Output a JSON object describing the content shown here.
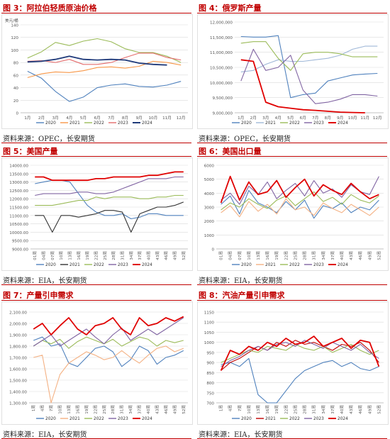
{
  "panels": [
    {
      "title": "图 3：阿拉伯轻质原油价格",
      "source": "资料来源：OPEC，长安期货",
      "chart_data": {
        "type": "line",
        "ylabel": "美元/桶",
        "ylim": [
          0,
          140
        ],
        "yticks": [
          0,
          20,
          40,
          60,
          80,
          100,
          120,
          140
        ],
        "categories": [
          "1月",
          "2月",
          "3月",
          "4月",
          "5月",
          "6月",
          "7月",
          "8月",
          "9月",
          "10月",
          "11月",
          "12月"
        ],
        "legend": "bottom",
        "series": [
          {
            "name": "2020",
            "color": "#4f81bd",
            "values": [
              66,
              55,
              34,
              18,
              25,
              40,
              44,
              46,
              42,
              41,
              44,
              50
            ]
          },
          {
            "name": "2021",
            "color": "#f79646",
            "values": [
              56,
              62,
              65,
              64,
              67,
              72,
              73,
              71,
              74,
              82,
              80,
              76
            ]
          },
          {
            "name": "2022",
            "color": "#9bbb59",
            "values": [
              87,
              97,
              112,
              107,
              114,
              118,
              113,
              102,
              96,
              96,
              90,
              80
            ]
          },
          {
            "name": "2023",
            "color": "#e46c6c",
            "values": [
              82,
              83,
              80,
              85,
              77,
              77,
              80,
              88,
              95,
              95,
              88,
              84
            ]
          },
          {
            "name": "2024",
            "color": "#1f3a7a",
            "values": [
              81,
              82,
              85,
              90,
              85,
              84,
              85,
              84,
              79,
              77,
              76,
              null
            ]
          }
        ]
      }
    },
    {
      "title": "图 4：俄罗斯产量",
      "source": "资料来源：OPEC，长安期货",
      "chart_data": {
        "type": "line",
        "ylim": [
          9000000,
          12000000
        ],
        "yticks": [
          9000000,
          9500000,
          10000000,
          10500000,
          11000000,
          11500000,
          12000000
        ],
        "ytick_labels": [
          "9,000,000",
          "9,500,000",
          "10,000,000",
          "10,500,000",
          "11,000,000",
          "11,500,000",
          "12,000,000"
        ],
        "categories": [
          "1月",
          "2月",
          "3月",
          "4月",
          "5月",
          "6月",
          "7月",
          "8月",
          "9月",
          "10月",
          "11月",
          "12月"
        ],
        "legend": "bottom",
        "series": [
          {
            "name": "2020",
            "color": "#4f81bd",
            "values": [
              11520000,
              11500000,
              11500000,
              11550000,
              9500000,
              9600000,
              9650000,
              10050000,
              10150000,
              10250000,
              10280000,
              10300000
            ]
          },
          {
            "name": "2021",
            "color": "#a0b8d8",
            "values": [
              10350000,
              10400000,
              10600000,
              10750000,
              10700000,
              10700000,
              10750000,
              10800000,
              10900000,
              11100000,
              11200000,
              11200000
            ]
          },
          {
            "name": "2022",
            "color": "#9bbb59",
            "values": [
              11300000,
              11350000,
              11350000,
              10800000,
              10400000,
              10950000,
              11000000,
              11000000,
              10950000,
              10850000,
              10850000,
              10850000
            ]
          },
          {
            "name": "2023",
            "color": "#8064a2",
            "values": [
              10050000,
              11100000,
              10400000,
              10500000,
              10900000,
              9750000,
              9300000,
              9350000,
              9450000,
              9600000,
              9600000,
              9550000
            ]
          },
          {
            "name": "2024",
            "color": "#e00000",
            "values": [
              10750000,
              10700000,
              9350000,
              9200000,
              9150000,
              9100000,
              9080000,
              9050000,
              9020000,
              9010000,
              9000000,
              null
            ]
          }
        ]
      }
    },
    {
      "title": "图 5：美国产量",
      "source": "资料来源：EIA，长安期货",
      "chart_data": {
        "type": "line",
        "ylim": [
          9000,
          14000
        ],
        "yticks": [
          9000,
          9500,
          10000,
          10500,
          11000,
          11500,
          12000,
          12500,
          13000,
          13500,
          14000
        ],
        "ytick_labels": [
          "9000.00",
          "9500.00",
          "10000.00",
          "10500.00",
          "11000.00",
          "11500.00",
          "12000.00",
          "12500.00",
          "13000.00",
          "13500.00",
          "14000.00"
        ],
        "categories": [
          "01周",
          "04周",
          "07周",
          "10周",
          "13周",
          "16周",
          "19周",
          "22周",
          "25周",
          "28周",
          "31周",
          "34周",
          "37周",
          "40周",
          "43周",
          "46周",
          "49周",
          "52周"
        ],
        "legend": "bottom",
        "series": [
          {
            "name": "2020",
            "color": "#4f81bd",
            "values": [
              12900,
              13000,
              13100,
              13100,
              13000,
              12300,
              11600,
              11200,
              11000,
              11000,
              11100,
              10800,
              10900,
              11100,
              11100,
              11000,
              11000,
              11000
            ]
          },
          {
            "name": "2021",
            "color": "#333333",
            "values": [
              11000,
              11000,
              10000,
              11000,
              11000,
              10900,
              11000,
              11100,
              11300,
              11300,
              11200,
              10000,
              11100,
              11300,
              11500,
              11500,
              11600,
              11800
            ]
          },
          {
            "name": "2022",
            "color": "#9bbb59",
            "values": [
              11600,
              11600,
              11600,
              11700,
              11800,
              11900,
              11900,
              12100,
              12000,
              12100,
              12100,
              12100,
              12000,
              12000,
              12100,
              12100,
              12200,
              12200
            ]
          },
          {
            "name": "2023",
            "color": "#8064a2",
            "values": [
              12200,
              12300,
              12300,
              12300,
              12300,
              12400,
              12400,
              12300,
              12300,
              12400,
              12600,
              12800,
              13000,
              13200,
              13200,
              13200,
              13300,
              13300
            ]
          },
          {
            "name": "2024",
            "color": "#e00000",
            "values": [
              13300,
              13300,
              13100,
              13100,
              13100,
              13100,
              13100,
              13200,
              13200,
              13300,
              13300,
              13300,
              13300,
              13400,
              13400,
              13500,
              13600,
              13600
            ]
          }
        ]
      }
    },
    {
      "title": "图 6：美国出口量",
      "source": "资料来源：EIA，长安期货",
      "chart_data": {
        "type": "line",
        "ylim": [
          0,
          6000
        ],
        "yticks": [
          0,
          1000,
          2000,
          3000,
          4000,
          5000,
          6000
        ],
        "ytick_labels": [
          "0",
          "1000",
          "2000",
          "3000",
          "4000",
          "5000",
          "6000"
        ],
        "categories": [
          "01周",
          "04周",
          "07周",
          "10周",
          "13周",
          "16周",
          "19周",
          "22周",
          "25周",
          "28周",
          "31周",
          "34周",
          "37周",
          "40周",
          "43周",
          "46周",
          "49周",
          "52周"
        ],
        "legend": "bottom",
        "series": [
          {
            "name": "2020",
            "color": "#4f81bd",
            "values": [
              3200,
              3800,
              2500,
              4200,
              3300,
              3000,
              2600,
              3400,
              2800,
              3500,
              2200,
              3100,
              2900,
              3300,
              2600,
              3000,
              2800,
              3500
            ]
          },
          {
            "name": "2021",
            "color": "#f4b183",
            "values": [
              2600,
              3100,
              2300,
              3400,
              2700,
              3200,
              2500,
              3600,
              2800,
              3000,
              2400,
              3300,
              2900,
              2600,
              3200,
              2800,
              2400,
              3000
            ]
          },
          {
            "name": "2022",
            "color": "#9bbb59",
            "values": [
              2800,
              3300,
              3000,
              3600,
              3200,
              2900,
              3500,
              3800,
              3100,
              3600,
              4100,
              3400,
              3700,
              3200,
              3900,
              3500,
              3300,
              3800
            ]
          },
          {
            "name": "2023",
            "color": "#8064a2",
            "values": [
              3500,
              4000,
              3200,
              4500,
              3900,
              4800,
              3600,
              4200,
              4700,
              3800,
              4900,
              4000,
              4300,
              3700,
              4600,
              4100,
              3900,
              5200
            ]
          },
          {
            "name": "2024",
            "color": "#e00000",
            "values": [
              3300,
              5200,
              3500,
              4800,
              3900,
              4100,
              4900,
              3700,
              4400,
              5000,
              3800,
              4600,
              4200,
              3900,
              4700,
              4100,
              3600,
              3900
            ]
          }
        ]
      }
    },
    {
      "title": "图 7：产量引申需求",
      "source": "资料来源：EIA，长安期货",
      "chart_data": {
        "type": "line",
        "ylim": [
          1300,
          2100
        ],
        "yticks": [
          1300,
          1400,
          1500,
          1600,
          1700,
          1800,
          1900,
          2000,
          2100
        ],
        "ytick_labels": [
          "1,300.00",
          "1,400.00",
          "1,500.00",
          "1,600.00",
          "1,700.00",
          "1,800.00",
          "1,900.00",
          "2,000.00",
          "2,100.00"
        ],
        "categories": [
          "1周",
          "4周",
          "7周",
          "10周",
          "13周",
          "16周",
          "19周",
          "22周",
          "25周",
          "28周",
          "31周",
          "34周",
          "37周",
          "40周",
          "43周",
          "46周",
          "49周",
          "52周"
        ],
        "legend": "bottom",
        "series": [
          {
            "name": "2020",
            "color": "#4f81bd",
            "values": [
              1850,
              1880,
              1800,
              1820,
              1650,
              1620,
              1700,
              1780,
              1800,
              1750,
              1620,
              1680,
              1800,
              1760,
              1640,
              1700,
              1720,
              1760
            ]
          },
          {
            "name": "2021",
            "color": "#f4b183",
            "values": [
              1700,
              1720,
              1300,
              1550,
              1650,
              1700,
              1750,
              1720,
              1680,
              1700,
              1760,
              1700,
              1650,
              1720,
              1780,
              1800,
              1750,
              1780
            ]
          },
          {
            "name": "2022",
            "color": "#9bbb59",
            "values": [
              1800,
              1850,
              1820,
              1860,
              1780,
              1840,
              1880,
              1850,
              1820,
              1860,
              1800,
              1840,
              1880,
              1860,
              1800,
              1850,
              1830,
              1850
            ]
          },
          {
            "name": "2023",
            "color": "#8064a2",
            "values": [
              1800,
              1850,
              1900,
              1800,
              1850,
              1900,
              1950,
              1880,
              1820,
              1900,
              1960,
              1850,
              1900,
              1950,
              1900,
              1950,
              2000,
              2050
            ]
          },
          {
            "name": "2024",
            "color": "#e00000",
            "values": [
              1950,
              2000,
              1900,
              1980,
              2050,
              1950,
              1900,
              1980,
              2000,
              2050,
              1950,
              1900,
              2050,
              1980,
              2000,
              2050,
              2020,
              2060
            ]
          }
        ]
      }
    },
    {
      "title": "图 8：汽油产量引申需求",
      "source": "资料来源：EIA，长安期货",
      "chart_data": {
        "type": "line",
        "ylim": [
          700,
          1150
        ],
        "yticks": [
          700,
          750,
          800,
          850,
          900,
          950,
          1000,
          1050,
          1100,
          1150
        ],
        "ytick_labels": [
          "700",
          "750",
          "800",
          "850",
          "900",
          "950",
          "1000",
          "1050",
          "1100",
          "1150"
        ],
        "categories": [
          "1周",
          "4周",
          "7周",
          "10周",
          "13周",
          "16周",
          "19周",
          "22周",
          "25周",
          "28周",
          "31周",
          "34周",
          "37周",
          "40周",
          "43周",
          "46周",
          "49周",
          "52周"
        ],
        "legend": "bottom",
        "series": [
          {
            "name": "2020",
            "color": "#4f81bd",
            "values": [
              890,
              900,
              880,
              920,
              740,
              700,
              700,
              760,
              820,
              860,
              880,
              900,
              910,
              880,
              900,
              870,
              860,
              880
            ]
          },
          {
            "name": "2021",
            "color": "#c00000",
            "values": [
              860,
              900,
              920,
              950,
              980,
              960,
              1000,
              980,
              1010,
              990,
              1000,
              980,
              960,
              990,
              980,
              1000,
              960,
              900
            ]
          },
          {
            "name": "2022",
            "color": "#9bbb59",
            "values": [
              900,
              920,
              940,
              960,
              950,
              980,
              970,
              960,
              990,
              970,
              960,
              980,
              950,
              970,
              990,
              960,
              940,
              960
            ]
          },
          {
            "name": "2023",
            "color": "#8064a2",
            "values": [
              880,
              910,
              930,
              960,
              980,
              960,
              990,
              1000,
              980,
              1010,
              990,
              970,
              1000,
              980,
              960,
              990,
              950,
              920
            ]
          },
          {
            "name": "2024",
            "color": "#e00000",
            "values": [
              860,
              960,
              940,
              980,
              960,
              1000,
              980,
              1020,
              990,
              1000,
              1030,
              980,
              1000,
              1020,
              970,
              1010,
              1000,
              880
            ]
          }
        ]
      }
    }
  ]
}
